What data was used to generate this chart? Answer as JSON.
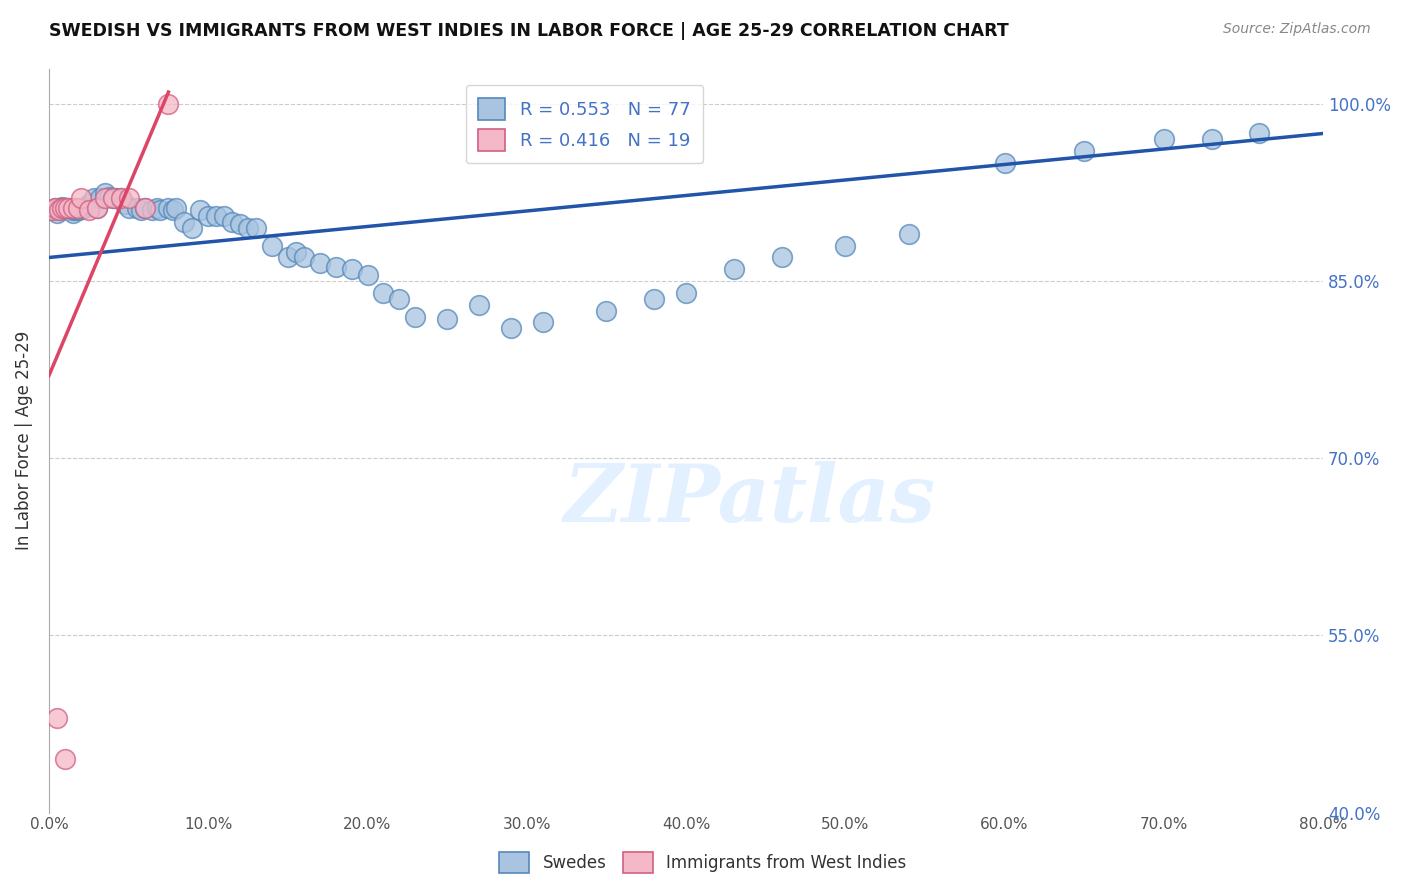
{
  "title": "SWEDISH VS IMMIGRANTS FROM WEST INDIES IN LABOR FORCE | AGE 25-29 CORRELATION CHART",
  "source": "Source: ZipAtlas.com",
  "ylabel": "In Labor Force | Age 25-29",
  "xmin": 0.0,
  "xmax": 0.8,
  "ymin": 0.4,
  "ymax": 1.03,
  "yticks": [
    0.4,
    0.55,
    0.7,
    0.85,
    1.0
  ],
  "ytick_labels": [
    "40.0%",
    "55.0%",
    "70.0%",
    "85.0%",
    "100.0%"
  ],
  "xticks": [
    0.0,
    0.1,
    0.2,
    0.3,
    0.4,
    0.5,
    0.6,
    0.7,
    0.8
  ],
  "xtick_labels": [
    "0.0%",
    "10.0%",
    "20.0%",
    "30.0%",
    "40.0%",
    "50.0%",
    "60.0%",
    "70.0%",
    "80.0%"
  ],
  "blue_R": 0.553,
  "blue_N": 77,
  "pink_R": 0.416,
  "pink_N": 19,
  "blue_color": "#a8c4e0",
  "blue_edge_color": "#5588bb",
  "pink_color": "#f4b8c8",
  "pink_edge_color": "#d06080",
  "blue_line_color": "#2255aa",
  "pink_line_color": "#dd4466",
  "background_color": "#ffffff",
  "watermark_text": "ZIPatlas",
  "swedes_x": [
    0.002,
    0.003,
    0.004,
    0.005,
    0.006,
    0.007,
    0.008,
    0.009,
    0.01,
    0.011,
    0.012,
    0.013,
    0.014,
    0.015,
    0.016,
    0.017,
    0.018,
    0.019,
    0.02,
    0.022,
    0.025,
    0.028,
    0.03,
    0.032,
    0.035,
    0.038,
    0.04,
    0.042,
    0.045,
    0.048,
    0.05,
    0.055,
    0.058,
    0.06,
    0.065,
    0.068,
    0.07,
    0.075,
    0.078,
    0.08,
    0.085,
    0.09,
    0.095,
    0.1,
    0.105,
    0.11,
    0.115,
    0.12,
    0.125,
    0.13,
    0.14,
    0.15,
    0.155,
    0.16,
    0.17,
    0.18,
    0.19,
    0.2,
    0.21,
    0.22,
    0.23,
    0.25,
    0.27,
    0.29,
    0.31,
    0.35,
    0.38,
    0.4,
    0.43,
    0.46,
    0.5,
    0.54,
    0.6,
    0.65,
    0.7,
    0.73,
    0.76
  ],
  "swedes_y": [
    0.91,
    0.91,
    0.912,
    0.908,
    0.912,
    0.91,
    0.913,
    0.912,
    0.912,
    0.912,
    0.912,
    0.91,
    0.91,
    0.908,
    0.91,
    0.91,
    0.911,
    0.91,
    0.911,
    0.912,
    0.915,
    0.92,
    0.912,
    0.92,
    0.925,
    0.921,
    0.92,
    0.92,
    0.92,
    0.915,
    0.912,
    0.912,
    0.91,
    0.912,
    0.91,
    0.912,
    0.91,
    0.912,
    0.91,
    0.912,
    0.9,
    0.895,
    0.91,
    0.905,
    0.905,
    0.905,
    0.9,
    0.898,
    0.895,
    0.895,
    0.88,
    0.87,
    0.875,
    0.87,
    0.865,
    0.862,
    0.86,
    0.855,
    0.84,
    0.835,
    0.82,
    0.818,
    0.83,
    0.81,
    0.815,
    0.825,
    0.835,
    0.84,
    0.86,
    0.87,
    0.88,
    0.89,
    0.95,
    0.96,
    0.97,
    0.97,
    0.975
  ],
  "pink_x": [
    0.002,
    0.004,
    0.006,
    0.008,
    0.01,
    0.012,
    0.015,
    0.018,
    0.02,
    0.025,
    0.03,
    0.035,
    0.04,
    0.045,
    0.05,
    0.06,
    0.075,
    0.005,
    0.01
  ],
  "pink_y": [
    0.91,
    0.912,
    0.91,
    0.912,
    0.912,
    0.912,
    0.912,
    0.912,
    0.92,
    0.91,
    0.912,
    0.92,
    0.92,
    0.92,
    0.92,
    0.912,
    1.0,
    0.48,
    0.445
  ],
  "blue_trendline": [
    0.0,
    0.8,
    0.87,
    0.975
  ],
  "pink_trendline": [
    0.0,
    0.075,
    0.77,
    1.01
  ]
}
